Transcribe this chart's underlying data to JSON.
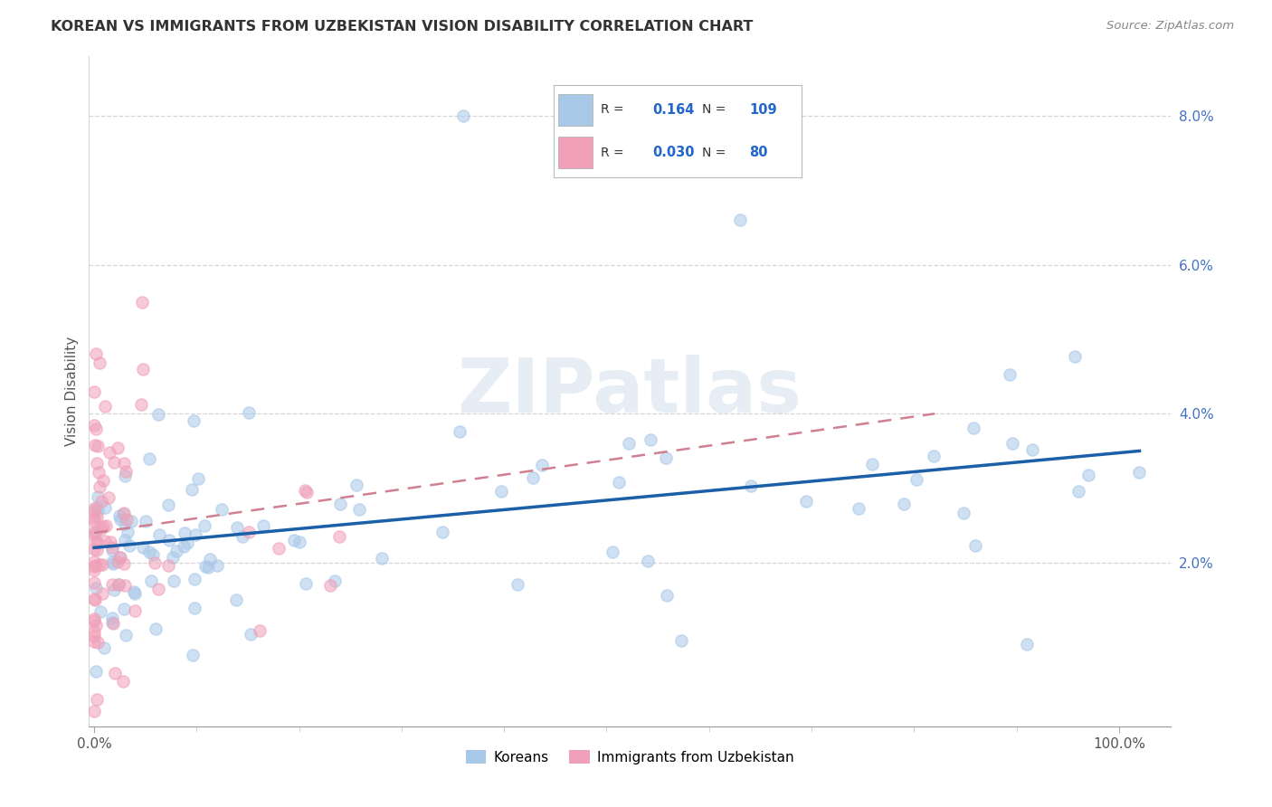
{
  "title": "KOREAN VS IMMIGRANTS FROM UZBEKISTAN VISION DISABILITY CORRELATION CHART",
  "source": "Source: ZipAtlas.com",
  "ylabel": "Vision Disability",
  "watermark": "ZIPatlas",
  "legend_korean_R": "0.164",
  "legend_korean_N": "109",
  "legend_uzbek_R": "0.030",
  "legend_uzbek_N": "80",
  "korean_color": "#a8c8e8",
  "uzbek_color": "#f0a0b8",
  "korean_line_color": "#1a5fa8",
  "uzbek_line_color": "#d08090",
  "background_color": "#ffffff",
  "grid_color": "#cccccc",
  "ylim": [
    -0.002,
    0.088
  ],
  "xlim": [
    -0.005,
    1.05
  ],
  "yticks": [
    0.02,
    0.04,
    0.06,
    0.08
  ],
  "ytick_labels": [
    "2.0%",
    "4.0%",
    "6.0%",
    "8.0%"
  ],
  "korean_line_x0": 0.0,
  "korean_line_x1": 1.02,
  "korean_line_y0": 0.022,
  "korean_line_y1": 0.035,
  "uzbek_line_x0": 0.0,
  "uzbek_line_x1": 0.82,
  "uzbek_line_y0": 0.024,
  "uzbek_line_y1": 0.04
}
